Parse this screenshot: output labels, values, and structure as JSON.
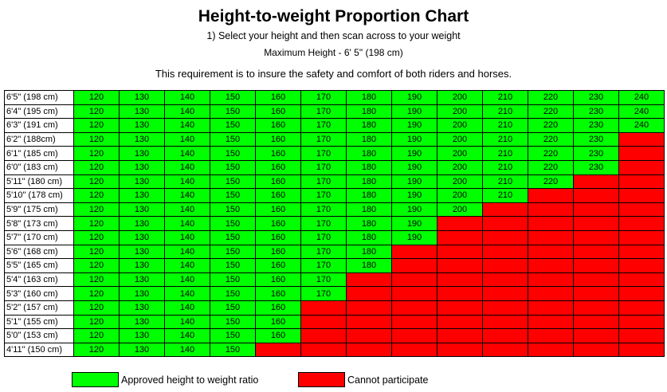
{
  "header": {
    "title": "Height-to-weight Proportion Chart",
    "subtitle": "1) Select your height and then scan across to your weight",
    "max_height": "Maximum Height - 6' 5\" (198 cm)",
    "requirement": "This requirement is to insure the safety and comfort of both riders and horses."
  },
  "colors": {
    "approved": "#00ff00",
    "cannot": "#ff0000"
  },
  "legend": {
    "approved_label": "Approved height to weight ratio",
    "cannot_label": "Cannot participate"
  },
  "chart_data": {
    "type": "table",
    "weights": [
      120,
      130,
      140,
      150,
      160,
      170,
      180,
      190,
      200,
      210,
      220,
      230,
      240
    ],
    "rows": [
      {
        "height": "6'5\" (198 cm)",
        "max_weight": 240
      },
      {
        "height": "6'4\" (195 cm)",
        "max_weight": 240
      },
      {
        "height": "6'3\" (191 cm)",
        "max_weight": 240
      },
      {
        "height": "6'2\" (188cm)",
        "max_weight": 230
      },
      {
        "height": "6'1\" (185 cm)",
        "max_weight": 230
      },
      {
        "height": "6'0\" (183 cm)",
        "max_weight": 230
      },
      {
        "height": "5'11\" (180 cm)",
        "max_weight": 220
      },
      {
        "height": "5'10\" (178 cm)",
        "max_weight": 210
      },
      {
        "height": "5'9\" (175 cm)",
        "max_weight": 200
      },
      {
        "height": "5'8\" (173 cm)",
        "max_weight": 190
      },
      {
        "height": "5'7\" (170 cm)",
        "max_weight": 190
      },
      {
        "height": "5'6\" (168 cm)",
        "max_weight": 180
      },
      {
        "height": "5'5\" (165 cm)",
        "max_weight": 180
      },
      {
        "height": "5'4\" (163 cm)",
        "max_weight": 170
      },
      {
        "height": "5'3\" (160 cm)",
        "max_weight": 170
      },
      {
        "height": "5'2\" (157 cm)",
        "max_weight": 160
      },
      {
        "height": "5'1\" (155 cm)",
        "max_weight": 160
      },
      {
        "height": "5'0\" (153 cm)",
        "max_weight": 160
      },
      {
        "height": "4'11\" (150 cm)",
        "max_weight": 150
      }
    ]
  }
}
